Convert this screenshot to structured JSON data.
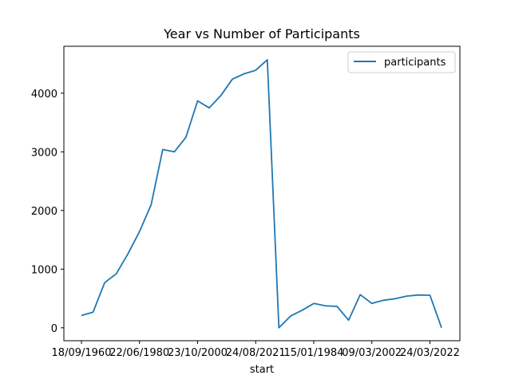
{
  "chart_data": {
    "type": "line",
    "title": "Year vs Number of Participants",
    "xlabel": "start",
    "ylabel": "",
    "grid": false,
    "legend_position": "top-right",
    "ylim": [
      -220,
      4800
    ],
    "yticks": [
      0,
      1000,
      2000,
      3000,
      4000
    ],
    "xtick_labels": [
      "18/09/1960",
      "22/06/1980",
      "23/10/2000",
      "24/08/2021",
      "15/01/1984",
      "09/03/2002",
      "24/03/2022"
    ],
    "xtick_indices": [
      0,
      5,
      10,
      15,
      20,
      25,
      30
    ],
    "series": [
      {
        "name": "participants",
        "color": "#1f77b4",
        "values": [
          210,
          265,
          770,
          920,
          1260,
          1640,
          2100,
          3040,
          3000,
          3250,
          3870,
          3750,
          3960,
          4240,
          4330,
          4390,
          4570,
          0,
          200,
          300,
          415,
          375,
          365,
          130,
          565,
          415,
          470,
          495,
          540,
          560,
          555,
          0
        ]
      }
    ]
  }
}
